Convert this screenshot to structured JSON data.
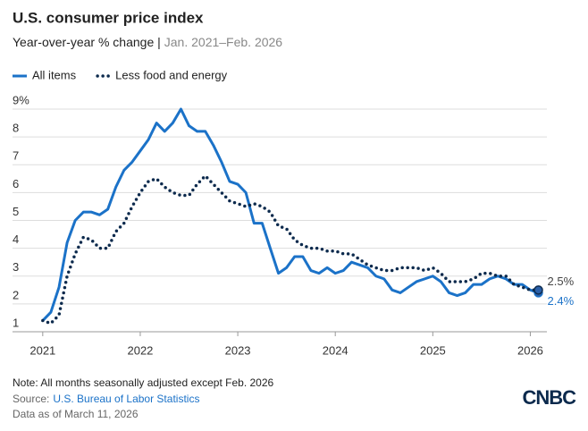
{
  "chart_data": {
    "type": "line",
    "title": "U.S. consumer price index",
    "subtitle": "Year-over-year % change |",
    "subtitle_dates": "Jan. 2021–Feb. 2026",
    "x": [
      2021,
      2021.083,
      2021.167,
      2021.25,
      2021.333,
      2021.417,
      2021.5,
      2021.583,
      2021.667,
      2021.75,
      2021.833,
      2021.917,
      2022,
      2022.083,
      2022.167,
      2022.25,
      2022.333,
      2022.417,
      2022.5,
      2022.583,
      2022.667,
      2022.75,
      2022.833,
      2022.917,
      2023,
      2023.083,
      2023.167,
      2023.25,
      2023.333,
      2023.417,
      2023.5,
      2023.583,
      2023.667,
      2023.75,
      2023.833,
      2023.917,
      2024,
      2024.083,
      2024.167,
      2024.25,
      2024.333,
      2024.417,
      2024.5,
      2024.583,
      2024.667,
      2024.75,
      2024.833,
      2024.917,
      2025,
      2025.083,
      2025.167,
      2025.25,
      2025.333,
      2025.417,
      2025.5,
      2025.583,
      2025.667,
      2025.75,
      2025.833,
      2025.917,
      2026,
      2026.083
    ],
    "series": [
      {
        "name": "All items",
        "color": "#1b72c8",
        "style": "solid",
        "values": [
          1.4,
          1.7,
          2.6,
          4.2,
          5.0,
          5.3,
          5.3,
          5.2,
          5.4,
          6.2,
          6.8,
          7.1,
          7.5,
          7.9,
          8.5,
          8.2,
          8.5,
          9.0,
          8.4,
          8.2,
          8.2,
          7.7,
          7.1,
          6.4,
          6.3,
          6.0,
          4.9,
          4.9,
          4.0,
          3.1,
          3.3,
          3.7,
          3.7,
          3.2,
          3.1,
          3.3,
          3.1,
          3.2,
          3.5,
          3.4,
          3.3,
          3.0,
          2.9,
          2.5,
          2.4,
          2.6,
          2.8,
          2.9,
          3.0,
          2.8,
          2.4,
          2.3,
          2.4,
          2.7,
          2.7,
          2.9,
          3.0,
          2.9,
          2.7,
          2.7,
          2.5,
          2.4
        ],
        "value_labels": [
          null,
          null,
          null,
          null,
          null,
          null,
          null,
          null,
          null,
          null,
          null,
          null,
          null,
          null,
          null,
          null,
          null,
          null,
          null,
          null,
          null,
          null,
          null,
          null,
          null,
          null,
          null,
          null,
          null,
          null,
          null,
          null,
          null,
          null,
          null,
          null,
          null,
          null,
          null,
          null,
          null,
          null,
          null,
          null,
          null,
          null,
          null,
          null,
          null,
          null,
          null,
          null,
          null,
          null,
          null,
          null,
          null,
          null,
          null,
          null,
          null,
          "2.4%"
        ]
      },
      {
        "name": "Less food and energy",
        "color": "#0c2a4d",
        "style": "dotted",
        "values": [
          1.4,
          1.3,
          1.6,
          3.0,
          3.8,
          4.4,
          4.3,
          4.0,
          4.0,
          4.6,
          4.9,
          5.5,
          6.0,
          6.4,
          6.5,
          6.2,
          6.0,
          5.9,
          5.9,
          6.3,
          6.6,
          6.3,
          6.0,
          5.7,
          5.6,
          5.5,
          5.6,
          5.5,
          5.3,
          4.8,
          4.7,
          4.3,
          4.1,
          4.0,
          4.0,
          3.9,
          3.9,
          3.8,
          3.8,
          3.6,
          3.4,
          3.3,
          3.2,
          3.2,
          3.3,
          3.3,
          3.3,
          3.2,
          3.3,
          3.1,
          2.8,
          2.8,
          2.8,
          2.9,
          3.1,
          3.1,
          3.0,
          3.0,
          2.7,
          2.6,
          2.5,
          2.5
        ],
        "value_labels": [
          null,
          null,
          null,
          null,
          null,
          null,
          null,
          null,
          null,
          null,
          null,
          null,
          null,
          null,
          null,
          null,
          null,
          null,
          null,
          null,
          null,
          null,
          null,
          null,
          null,
          null,
          null,
          null,
          null,
          null,
          null,
          null,
          null,
          null,
          null,
          null,
          null,
          null,
          null,
          null,
          null,
          null,
          null,
          null,
          null,
          null,
          null,
          null,
          null,
          null,
          null,
          null,
          null,
          null,
          null,
          null,
          null,
          null,
          null,
          null,
          null,
          "2.5%"
        ]
      }
    ],
    "xlim": [
      2020.69,
      2026.17
    ],
    "xticks": [
      2021,
      2022,
      2023,
      2024,
      2025,
      2026
    ],
    "ylim": [
      1,
      9
    ],
    "yticks": [
      1,
      2,
      3,
      4,
      5,
      6,
      7,
      8,
      {
        "value": 9,
        "label": "9%"
      }
    ],
    "grid": true,
    "legend": "top-left",
    "note": "Note: All months seasonally adjusted except Feb. 2026",
    "source_prefix": "Source:",
    "source": "U.S. Bureau of Labor Statistics",
    "data_date": "Data as of March 11, 2026",
    "logo": "CNBC"
  }
}
